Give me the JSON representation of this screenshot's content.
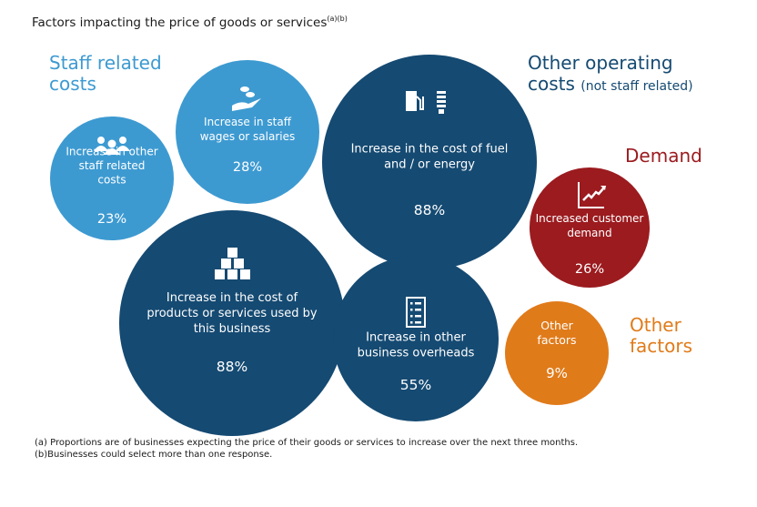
{
  "title": "Factors impacting the price of goods or services",
  "title_sup": "(a)(b)",
  "groups": {
    "staff": "Staff related costs",
    "other_main": "Other operating costs",
    "other_sub": "(not staff related)",
    "demand": "Demand",
    "other_factors": "Other factors"
  },
  "colors": {
    "staff": "#3d9ad1",
    "operating": "#154a72",
    "demand": "#9b1b1f",
    "other": "#e07b1a"
  },
  "chart_data": {
    "type": "bubble",
    "title": "Factors impacting the price of goods or services",
    "unit": "%",
    "items": [
      {
        "label": [
          "Increase in other",
          "staff related",
          "costs"
        ],
        "value": 23,
        "display": "23%",
        "group": "staff",
        "icon": "people-icon"
      },
      {
        "label": [
          "Increase in staff",
          "wages or salaries"
        ],
        "value": 28,
        "display": "28%",
        "group": "staff",
        "icon": "hand-coins-icon"
      },
      {
        "label": [
          "Increase in the cost of fuel",
          "and / or energy"
        ],
        "value": 88,
        "display": "88%",
        "group": "operating",
        "icon": "fuel-bulb-icon"
      },
      {
        "label": [
          "Increase in the cost of",
          "products or services used by",
          "this business"
        ],
        "value": 88,
        "display": "88%",
        "group": "operating",
        "icon": "boxes-icon"
      },
      {
        "label": [
          "Increase in other",
          "business overheads"
        ],
        "value": 55,
        "display": "55%",
        "group": "operating",
        "icon": "checklist-icon"
      },
      {
        "label": [
          "Increased customer",
          "demand"
        ],
        "value": 26,
        "display": "26%",
        "group": "demand",
        "icon": "rising-chart-icon"
      },
      {
        "label": [
          "Other",
          "factors"
        ],
        "value": 9,
        "display": "9%",
        "group": "other",
        "icon": ""
      }
    ]
  },
  "notes": [
    "(a) Proportions are of businesses expecting the price of their goods or services to increase over the next three months.",
    "(b)Businesses could select more than one response."
  ]
}
